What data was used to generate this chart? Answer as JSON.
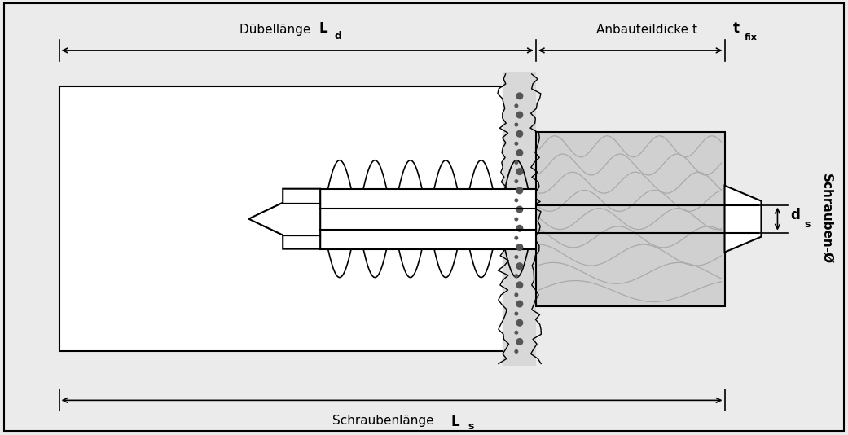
{
  "bg_color": "#ebebeb",
  "box_bg": "#ffffff",
  "line_color": "#000000",
  "wood_fill": "#d0d0d0",
  "wall_fill": "#d8d8d8",
  "label_dubellange": "Dübellänge ",
  "label_Ld": "L",
  "label_Ld_sub": "d",
  "label_anbau": "Anbauteildicke t",
  "label_tfix_sub": "fix",
  "label_schraube": "Schraubenlänge ",
  "label_Ls": "L",
  "label_Ls_sub": "s",
  "label_ds": "d",
  "label_ds_sub": "s",
  "label_schrauben_diam": "Schrauben-Ø",
  "figsize": [
    10.41,
    5.34
  ],
  "dpi": 100
}
